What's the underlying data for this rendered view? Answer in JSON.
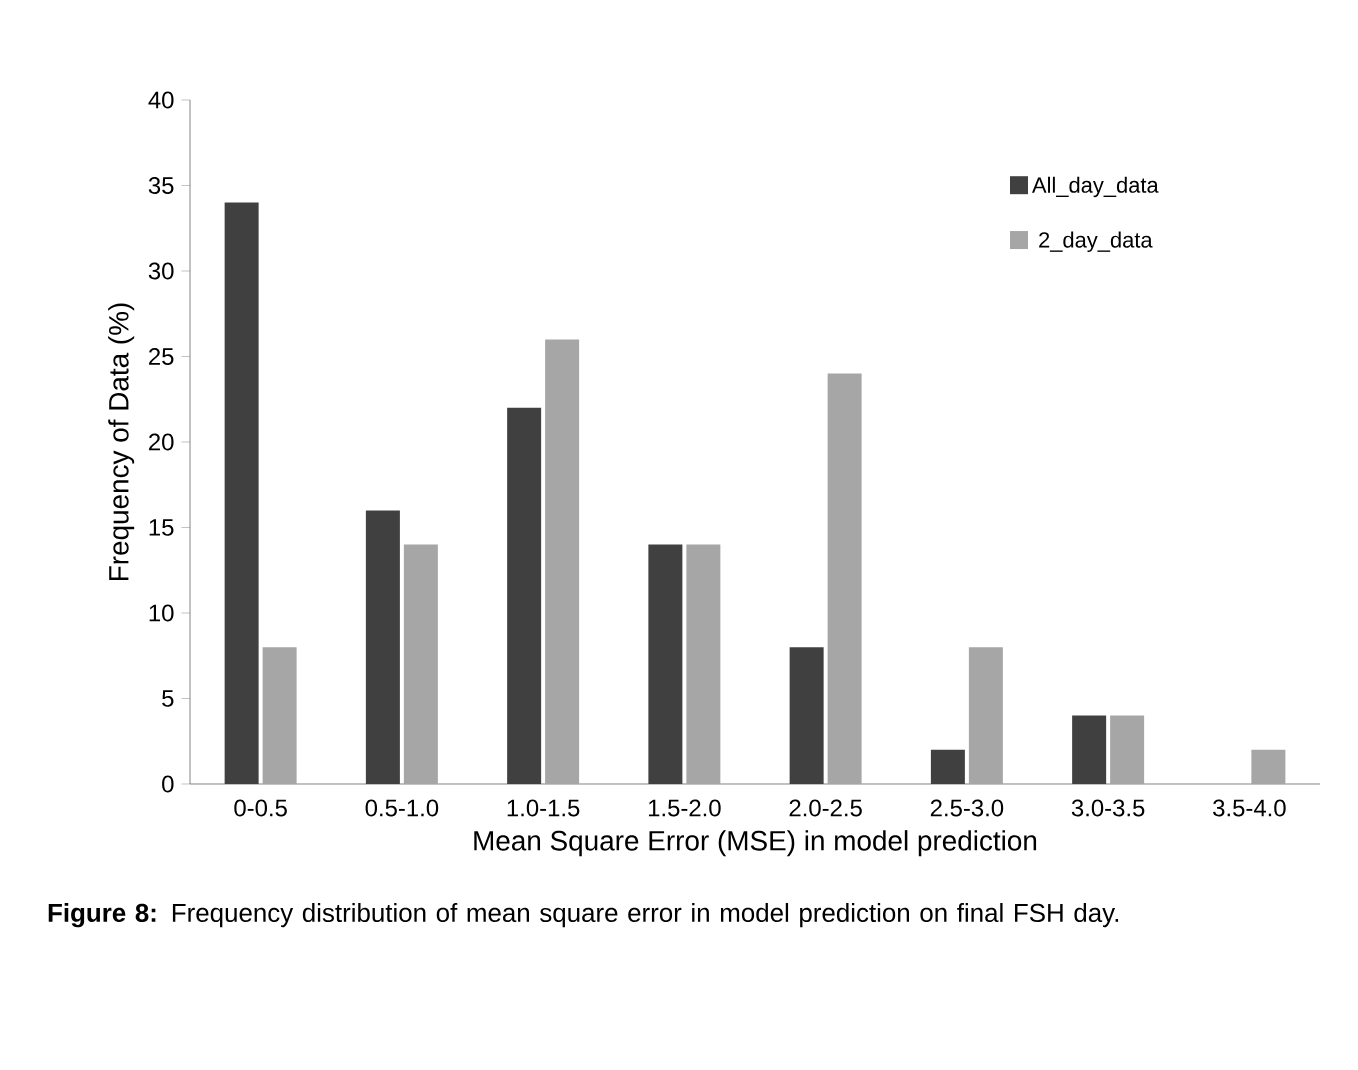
{
  "chart_data": {
    "type": "bar",
    "xlabel": "Mean Square Error (MSE) in model prediction",
    "ylabel": "Frequency of Data (%)",
    "categories": [
      "0-0.5",
      "0.5-1.0",
      "1.0-1.5",
      "1.5-2.0",
      "2.0-2.5",
      "2.5-3.0",
      "3.0-3.5",
      "3.5-4.0"
    ],
    "series": [
      {
        "name": "All_day_data",
        "color": "#404040",
        "values": [
          34,
          16,
          22,
          14,
          8,
          2,
          4,
          0
        ]
      },
      {
        "name": "2_day_data",
        "color": "#a6a6a6",
        "values": [
          8,
          14,
          26,
          14,
          24,
          8,
          4,
          2
        ]
      }
    ],
    "ylim": [
      0,
      40
    ],
    "yticks": [
      0,
      5,
      10,
      15,
      20,
      25,
      30,
      35,
      40
    ],
    "grid": false,
    "legend": "top right",
    "annotations": [
      "**Figure 8:** Frequency distribution of mean square error in model prediction on final FSH day."
    ]
  }
}
